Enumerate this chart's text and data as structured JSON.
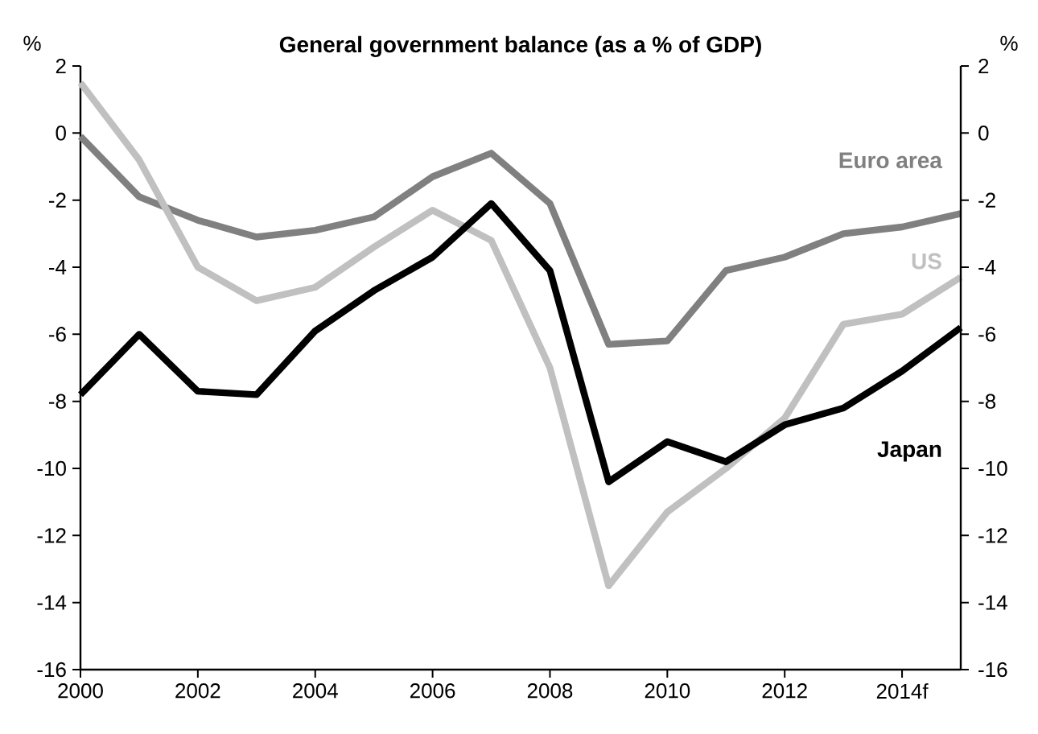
{
  "chart_data": {
    "type": "line",
    "title": "General government balance (as a % of GDP)",
    "ylabel": "%",
    "y2label": "%",
    "x": [
      2000,
      2001,
      2002,
      2003,
      2004,
      2005,
      2006,
      2007,
      2008,
      2009,
      2010,
      2011,
      2012,
      2013,
      2014,
      2015
    ],
    "series": [
      {
        "name": "Euro area",
        "color": "#808080",
        "values": [
          -0.1,
          -1.9,
          -2.6,
          -3.1,
          -2.9,
          -2.5,
          -1.3,
          -0.6,
          -2.1,
          -6.3,
          -6.2,
          -4.1,
          -3.7,
          -3.0,
          -2.8,
          -2.4
        ]
      },
      {
        "name": "US",
        "color": "#c0c0c0",
        "values": [
          1.5,
          -0.8,
          -4.0,
          -5.0,
          -4.6,
          -3.4,
          -2.3,
          -3.2,
          -7.0,
          -13.5,
          -11.3,
          -10.0,
          -8.5,
          -5.7,
          -5.4,
          -4.3
        ]
      },
      {
        "name": "Japan",
        "color": "#000000",
        "values": [
          -7.8,
          -6.0,
          -7.7,
          -7.8,
          -5.9,
          -4.7,
          -3.7,
          -2.1,
          -4.1,
          -10.4,
          -9.2,
          -9.8,
          -8.7,
          -8.2,
          -7.1,
          -5.8
        ]
      }
    ],
    "xlim": [
      2000,
      2015
    ],
    "xticks": [
      2000,
      2002,
      2004,
      2006,
      2008,
      2010,
      2012,
      {
        "value": 2014,
        "label": "2014f"
      }
    ],
    "ylim": [
      -16,
      2
    ],
    "yticks": [
      -16,
      -14,
      -12,
      -10,
      -8,
      -6,
      -4,
      -2,
      0,
      2
    ],
    "y2lim": [
      -16,
      2
    ],
    "y2ticks": [
      -16,
      -14,
      -12,
      -10,
      -8,
      -6,
      -4,
      -2,
      0,
      2
    ],
    "legend": false,
    "grid": false,
    "marker": "none",
    "line_style": "solid"
  }
}
